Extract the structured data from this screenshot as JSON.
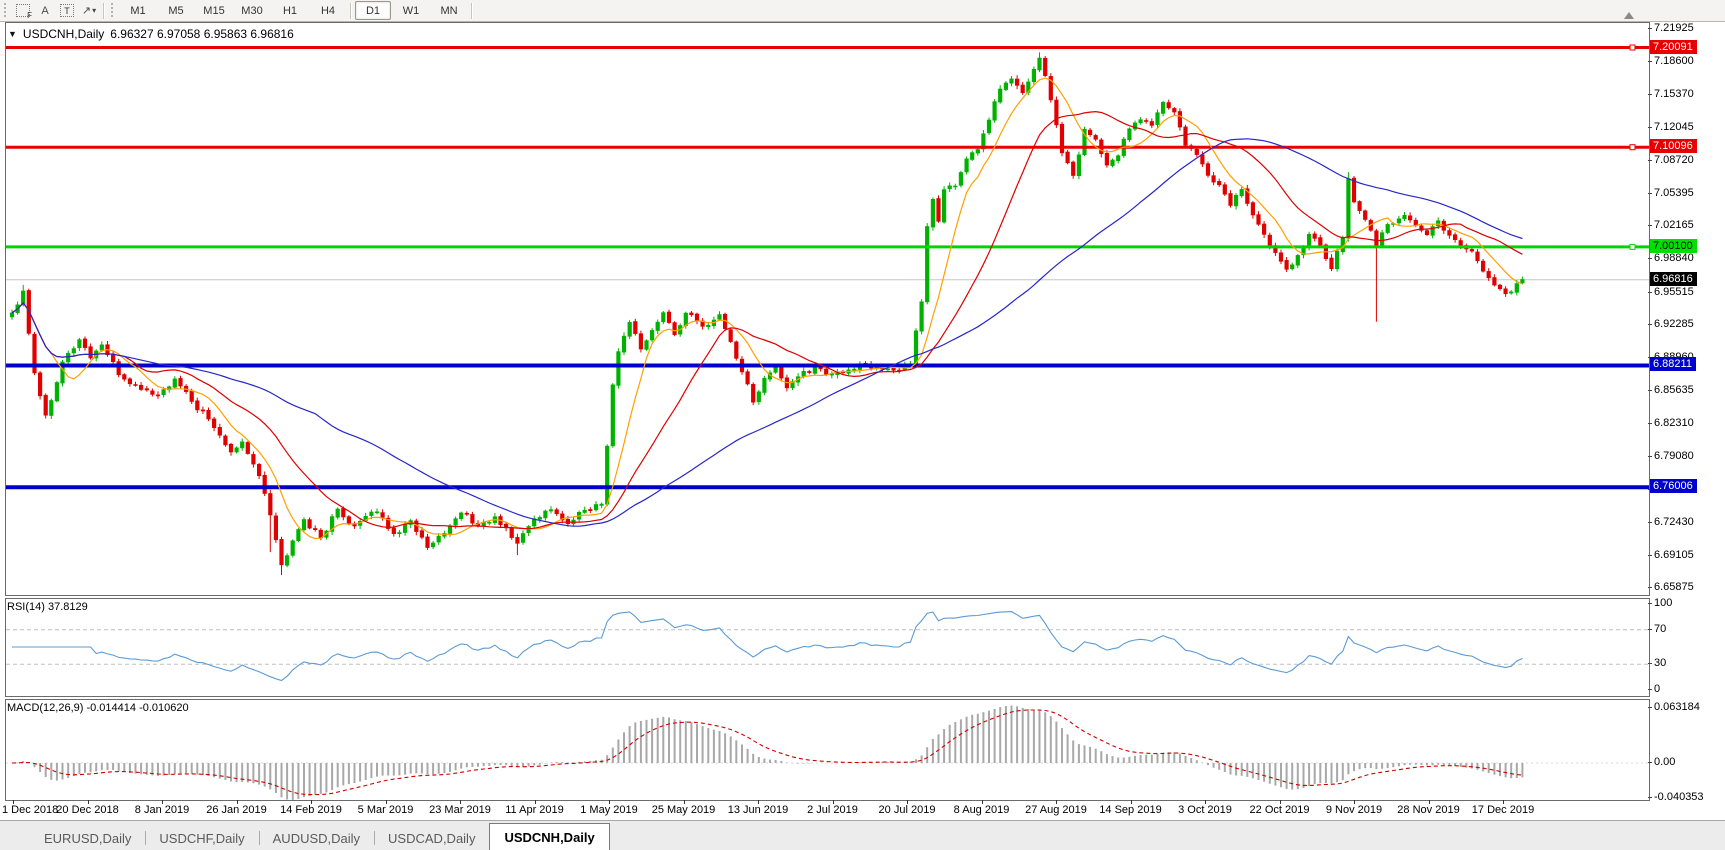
{
  "toolbar": {
    "icons": [
      {
        "name": "fibonacci-icon",
        "glyph": "F"
      },
      {
        "name": "text-icon",
        "glyph": "A"
      },
      {
        "name": "text-label-icon",
        "glyph": "T"
      },
      {
        "name": "arrows-icon",
        "glyph": "↗",
        "caret": "▾"
      }
    ],
    "timeframes": [
      "M1",
      "M5",
      "M15",
      "M30",
      "H1",
      "H4",
      "D1",
      "W1",
      "MN"
    ],
    "active_timeframe": "D1"
  },
  "header": {
    "collapse_glyph": "▼",
    "symbol": "USDCNH,Daily",
    "ohlc": "6.96327 6.97058 6.95863 6.96816"
  },
  "indicators": {
    "rsi_label": "RSI(14) 37.8129",
    "macd_label": "MACD(12,26,9) -0.014414 -0.010620"
  },
  "tabs": {
    "items": [
      "EURUSD,Daily",
      "USDCHF,Daily",
      "AUDUSD,Daily",
      "USDCAD,Daily",
      "USDCNH,Daily"
    ],
    "active": "USDCNH,Daily"
  },
  "chart_data": {
    "type": "candlestick",
    "symbol": "USDCNH",
    "timeframe": "Daily",
    "title": "USDCNH,Daily 6.96327 6.97058 6.95863 6.96816",
    "bars": 270,
    "price_axis": {
      "top": 7.2255,
      "bottom": 6.652,
      "ticks": [
        "7.21925",
        "7.18600",
        "7.15370",
        "7.12045",
        "7.08720",
        "7.05395",
        "7.02165",
        "6.98840",
        "6.95515",
        "6.92285",
        "6.88960",
        "6.85635",
        "6.82310",
        "6.79080",
        "6.75755",
        "6.72430",
        "6.69105",
        "6.65875"
      ]
    },
    "x_labels": [
      "1 Dec 2018",
      "20 Dec 2018",
      "8 Jan 2019",
      "26 Jan 2019",
      "14 Feb 2019",
      "5 Mar 2019",
      "23 Mar 2019",
      "11 Apr 2019",
      "1 May 2019",
      "25 May 2019",
      "13 Jun 2019",
      "2 Jul 2019",
      "20 Jul 2019",
      "8 Aug 2019",
      "27 Aug 2019",
      "14 Sep 2019",
      "3 Oct 2019",
      "22 Oct 2019",
      "9 Nov 2019",
      "28 Nov 2019",
      "17 Dec 2019"
    ],
    "hlines": [
      {
        "price": 7.20091,
        "label": "7.20091",
        "color": "#e80000",
        "label_bg": "#e80000",
        "label_fg": "#ffffff",
        "width": 3,
        "handle": true
      },
      {
        "price": 7.10096,
        "label": "7.10096",
        "color": "#e80000",
        "label_bg": "#e80000",
        "label_fg": "#ffffff",
        "width": 3,
        "handle": true
      },
      {
        "price": 7.001,
        "label": "7.00100",
        "color": "#00d400",
        "label_bg": "#00e000",
        "label_fg": "#000000",
        "width": 3,
        "handle": true
      },
      {
        "price": 6.88211,
        "label": "6.88211",
        "color": "#0000cc",
        "label_bg": "#0000cc",
        "label_fg": "#ffffff",
        "width": 4,
        "handle": false
      },
      {
        "price": 6.76006,
        "label": "6.76006",
        "color": "#0000cc",
        "label_bg": "#0000cc",
        "label_fg": "#ffffff",
        "width": 4,
        "handle": false
      }
    ],
    "current_price": {
      "value": 6.96816,
      "label": "6.96816",
      "line_color": "#c6c6c6",
      "label_bg": "#000000",
      "label_fg": "#ffffff"
    },
    "candle_colors": {
      "up": "#00b200",
      "down": "#e00000"
    },
    "moving_averages": [
      {
        "name": "fast-ma",
        "period": 8,
        "color": "#ffa000"
      },
      {
        "name": "mid-ma",
        "period": 21,
        "color": "#dd0000"
      },
      {
        "name": "slow-ma",
        "period": 55,
        "color": "#2626cc"
      }
    ],
    "close_anchors": [
      [
        0,
        6.935
      ],
      [
        2,
        6.957
      ],
      [
        4,
        6.875
      ],
      [
        6,
        6.832
      ],
      [
        9,
        6.886
      ],
      [
        12,
        6.908
      ],
      [
        14,
        6.89
      ],
      [
        16,
        6.903
      ],
      [
        19,
        6.873
      ],
      [
        22,
        6.862
      ],
      [
        26,
        6.852
      ],
      [
        29,
        6.868
      ],
      [
        32,
        6.846
      ],
      [
        35,
        6.828
      ],
      [
        39,
        6.796
      ],
      [
        41,
        6.806
      ],
      [
        44,
        6.772
      ],
      [
        46,
        6.732
      ],
      [
        48,
        6.682
      ],
      [
        50,
        6.706
      ],
      [
        52,
        6.728
      ],
      [
        55,
        6.709
      ],
      [
        58,
        6.738
      ],
      [
        61,
        6.721
      ],
      [
        65,
        6.736
      ],
      [
        68,
        6.713
      ],
      [
        71,
        6.727
      ],
      [
        74,
        6.699
      ],
      [
        77,
        6.713
      ],
      [
        80,
        6.735
      ],
      [
        83,
        6.721
      ],
      [
        86,
        6.73
      ],
      [
        90,
        6.704
      ],
      [
        93,
        6.729
      ],
      [
        96,
        6.738
      ],
      [
        99,
        6.723
      ],
      [
        102,
        6.737
      ],
      [
        105,
        6.743
      ],
      [
        106,
        6.802
      ],
      [
        107,
        6.863
      ],
      [
        108,
        6.896
      ],
      [
        110,
        6.926
      ],
      [
        112,
        6.899
      ],
      [
        114,
        6.917
      ],
      [
        116,
        6.935
      ],
      [
        118,
        6.913
      ],
      [
        120,
        6.935
      ],
      [
        123,
        6.921
      ],
      [
        126,
        6.933
      ],
      [
        128,
        6.906
      ],
      [
        130,
        6.876
      ],
      [
        132,
        6.846
      ],
      [
        134,
        6.869
      ],
      [
        136,
        6.881
      ],
      [
        138,
        6.859
      ],
      [
        140,
        6.871
      ],
      [
        143,
        6.881
      ],
      [
        146,
        6.873
      ],
      [
        149,
        6.878
      ],
      [
        152,
        6.883
      ],
      [
        155,
        6.879
      ],
      [
        158,
        6.878
      ],
      [
        160,
        6.883
      ],
      [
        162,
        6.946
      ],
      [
        163,
        7.021
      ],
      [
        164,
        7.049
      ],
      [
        165,
        7.026
      ],
      [
        166,
        7.059
      ],
      [
        168,
        7.062
      ],
      [
        170,
        7.089
      ],
      [
        172,
        7.099
      ],
      [
        174,
        7.129
      ],
      [
        176,
        7.159
      ],
      [
        178,
        7.169
      ],
      [
        180,
        7.156
      ],
      [
        182,
        7.179
      ],
      [
        183,
        7.191
      ],
      [
        185,
        7.149
      ],
      [
        187,
        7.096
      ],
      [
        189,
        7.073
      ],
      [
        191,
        7.119
      ],
      [
        193,
        7.109
      ],
      [
        195,
        7.083
      ],
      [
        197,
        7.093
      ],
      [
        199,
        7.119
      ],
      [
        201,
        7.129
      ],
      [
        203,
        7.123
      ],
      [
        205,
        7.146
      ],
      [
        207,
        7.136
      ],
      [
        209,
        7.103
      ],
      [
        211,
        7.093
      ],
      [
        213,
        7.073
      ],
      [
        215,
        7.063
      ],
      [
        217,
        7.043
      ],
      [
        219,
        7.059
      ],
      [
        221,
        7.033
      ],
      [
        223,
        7.013
      ],
      [
        225,
        6.996
      ],
      [
        227,
        6.979
      ],
      [
        229,
        6.993
      ],
      [
        231,
        7.013
      ],
      [
        233,
        7.003
      ],
      [
        235,
        6.979
      ],
      [
        237,
        7.011
      ],
      [
        238,
        7.069
      ],
      [
        239,
        7.046
      ],
      [
        241,
        7.029
      ],
      [
        243,
        7.003
      ],
      [
        245,
        7.023
      ],
      [
        248,
        7.033
      ],
      [
        250,
        7.023
      ],
      [
        252,
        7.013
      ],
      [
        254,
        7.027
      ],
      [
        256,
        7.013
      ],
      [
        258,
        7.003
      ],
      [
        260,
        6.997
      ],
      [
        262,
        6.977
      ],
      [
        264,
        6.963
      ],
      [
        266,
        6.954
      ],
      [
        268,
        6.964
      ],
      [
        269,
        6.968
      ]
    ],
    "wick_lows": [
      [
        46,
        6.695
      ],
      [
        48,
        6.672
      ],
      [
        90,
        6.692
      ],
      [
        243,
        6.926
      ]
    ],
    "wick_highs": [
      [
        2,
        6.963
      ],
      [
        183,
        7.196
      ],
      [
        238,
        7.076
      ]
    ],
    "rsi": {
      "period": 14,
      "last_value": 37.8129,
      "color": "#5b9bd5",
      "levels": [
        70,
        30
      ],
      "range": [
        0,
        100
      ],
      "ticks": [
        {
          "v": 100,
          "label": "100"
        },
        {
          "v": 70,
          "label": "70"
        },
        {
          "v": 30,
          "label": "30"
        },
        {
          "v": 0,
          "label": "0"
        }
      ]
    },
    "macd": {
      "fast": 12,
      "slow": 26,
      "signal": 9,
      "last_values": [
        -0.014414,
        -0.01062
      ],
      "hist_color": "#a8a8a8",
      "signal_color": "#d00000",
      "ticks": [
        {
          "v": 0.063184,
          "label": "0.063184"
        },
        {
          "v": 0,
          "label": "0.00"
        },
        {
          "v": -0.040353,
          "label": "-0.040353"
        }
      ]
    }
  }
}
